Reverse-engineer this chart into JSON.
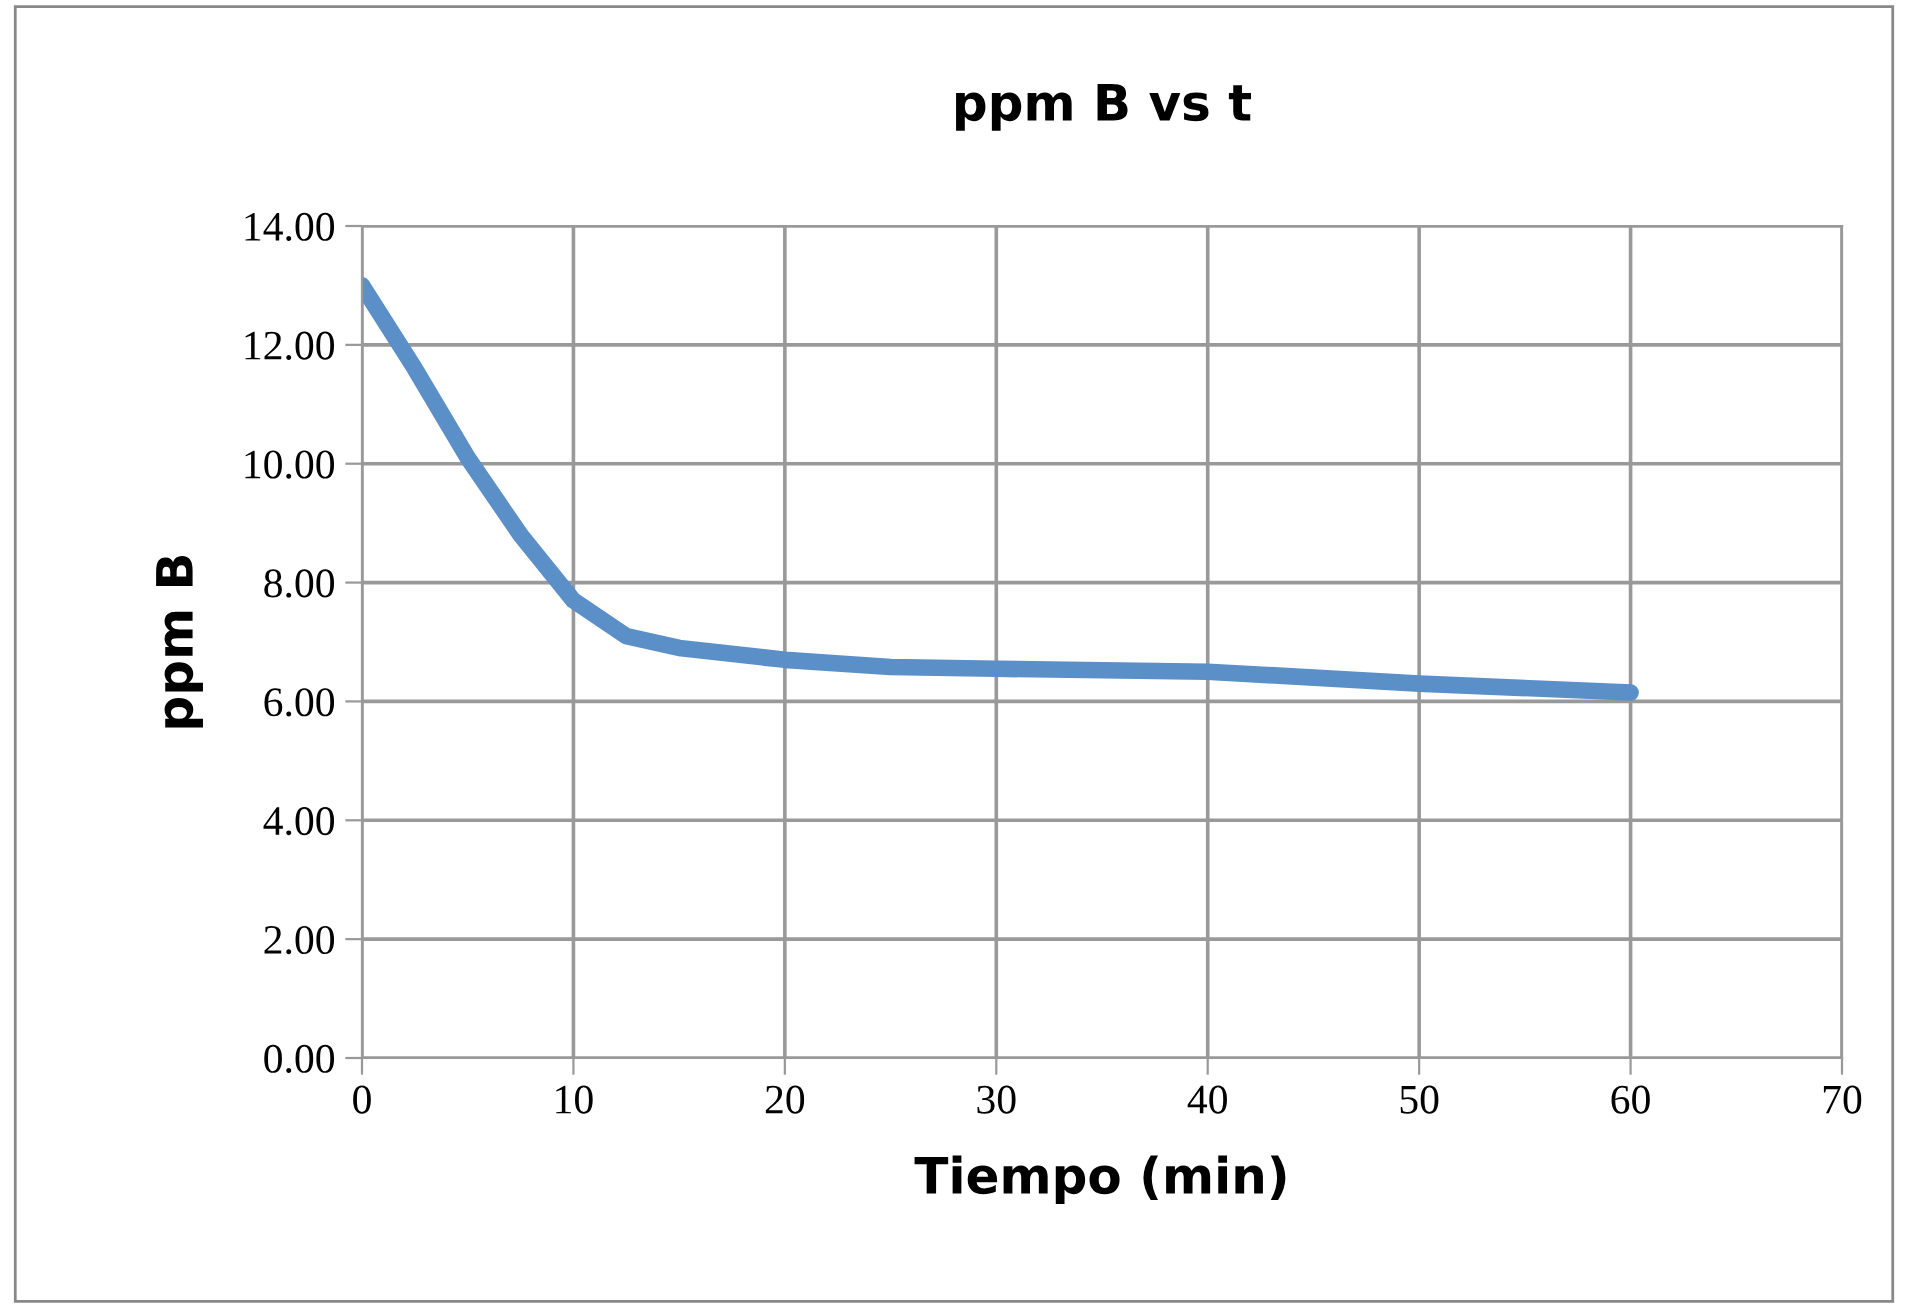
{
  "chart_data": {
    "type": "line",
    "title": "ppm B vs t",
    "xlabel": "Tiempo (min)",
    "ylabel": "ppm B",
    "x": [
      0,
      2.5,
      5,
      7.5,
      10,
      12.5,
      15,
      20,
      25,
      30,
      40,
      50,
      60
    ],
    "series": [
      {
        "color": "#5b8fc7",
        "values": [
          13.0,
          11.6,
          10.1,
          8.8,
          7.7,
          7.1,
          6.9,
          6.7,
          6.58,
          6.55,
          6.5,
          6.3,
          6.15
        ]
      }
    ],
    "xlim": [
      0,
      70
    ],
    "xticks": [
      0,
      10,
      20,
      30,
      40,
      50,
      60,
      70
    ],
    "ylim": [
      0,
      14
    ],
    "yticks": [
      {
        "value": 0,
        "label": "0.00"
      },
      {
        "value": 2,
        "label": "2.00"
      },
      {
        "value": 4,
        "label": "4.00"
      },
      {
        "value": 6,
        "label": "6.00"
      },
      {
        "value": 8,
        "label": "8.00"
      },
      {
        "value": 10,
        "label": "10.00"
      },
      {
        "value": 12,
        "label": "12.00"
      },
      {
        "value": 14,
        "label": "14.00"
      }
    ],
    "grid": true,
    "legend": false,
    "marker": "none",
    "line_style": "solid"
  }
}
